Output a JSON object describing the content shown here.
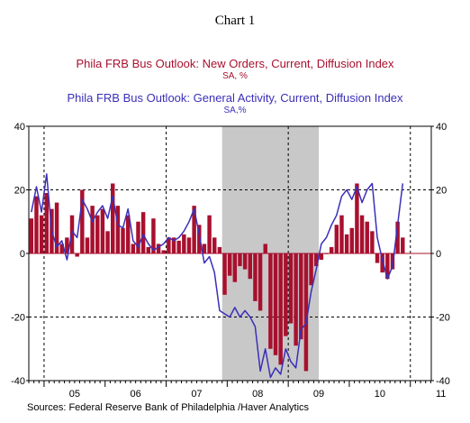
{
  "header": {
    "chart_number": "Chart 1",
    "series1_title": "Phila FRB Bus Outlook: New Orders, Current, Diffusion Index",
    "series1_unit": "SA, %",
    "series2_title": "Phila FRB Bus Outlook: General Activity, Current, Diffusion Index",
    "series2_unit": "SA,%"
  },
  "footer": {
    "source": "Sources:  Federal Reserve Bank of Philadelphia /Haver Analytics"
  },
  "colors": {
    "bars": "#a8102e",
    "line": "#3a2fb8",
    "recession": "#c8c8c8",
    "axis": "#000000"
  },
  "chart_data": {
    "type": "bar",
    "start": "2004-10",
    "frequency": "monthly",
    "x_ticks": [
      "05",
      "06",
      "07",
      "08",
      "09",
      "10",
      "11"
    ],
    "ylim": [
      -40,
      40
    ],
    "y_ticks": [
      "40",
      "20",
      "0",
      "-20",
      "-40"
    ],
    "recession_shading": {
      "from": "2007-12",
      "to": "2009-06"
    },
    "grid": "dashed",
    "series": [
      {
        "name": "Phila FRB Bus Outlook: New Orders, Current, Diffusion Index",
        "type": "bar",
        "values": [
          11,
          18,
          12,
          19,
          14,
          16,
          3,
          5,
          12,
          -1,
          20,
          5,
          15,
          12,
          14,
          7,
          22,
          15,
          8,
          12,
          3,
          10,
          13,
          2,
          11,
          3,
          1,
          5,
          5,
          4,
          6,
          5,
          15,
          9,
          3,
          12,
          5,
          2,
          -13,
          -7,
          -9,
          -4,
          -5,
          -8,
          -15,
          -18,
          3,
          -30,
          -32,
          -35,
          -26,
          -22,
          -29,
          -27,
          -37,
          -10,
          -4,
          -2,
          0,
          2,
          9,
          12,
          6,
          8,
          22,
          12,
          10,
          7,
          -3,
          -6,
          -8,
          -5,
          10,
          5
        ]
      },
      {
        "name": "Phila FRB Bus Outlook: General Activity, Current, Diffusion Index",
        "type": "line",
        "values": [
          13,
          21,
          13,
          25,
          7,
          2,
          4,
          -2,
          7,
          5,
          17,
          14,
          10,
          13,
          15,
          11,
          18,
          9,
          8,
          14,
          4,
          2,
          6,
          3,
          1,
          2,
          3,
          5,
          4,
          5,
          7,
          10,
          14,
          6,
          -3,
          -1,
          -6,
          -18,
          -19,
          -20,
          -17,
          -20,
          -18,
          -20,
          -23,
          -37,
          -30,
          -39,
          -36,
          -38,
          -30,
          -34,
          -36,
          -24,
          -22,
          -12,
          -5,
          3,
          5,
          9,
          12,
          18,
          20,
          17,
          21,
          16,
          20,
          22,
          5,
          -2,
          -8,
          -4,
          9,
          22
        ]
      }
    ]
  }
}
